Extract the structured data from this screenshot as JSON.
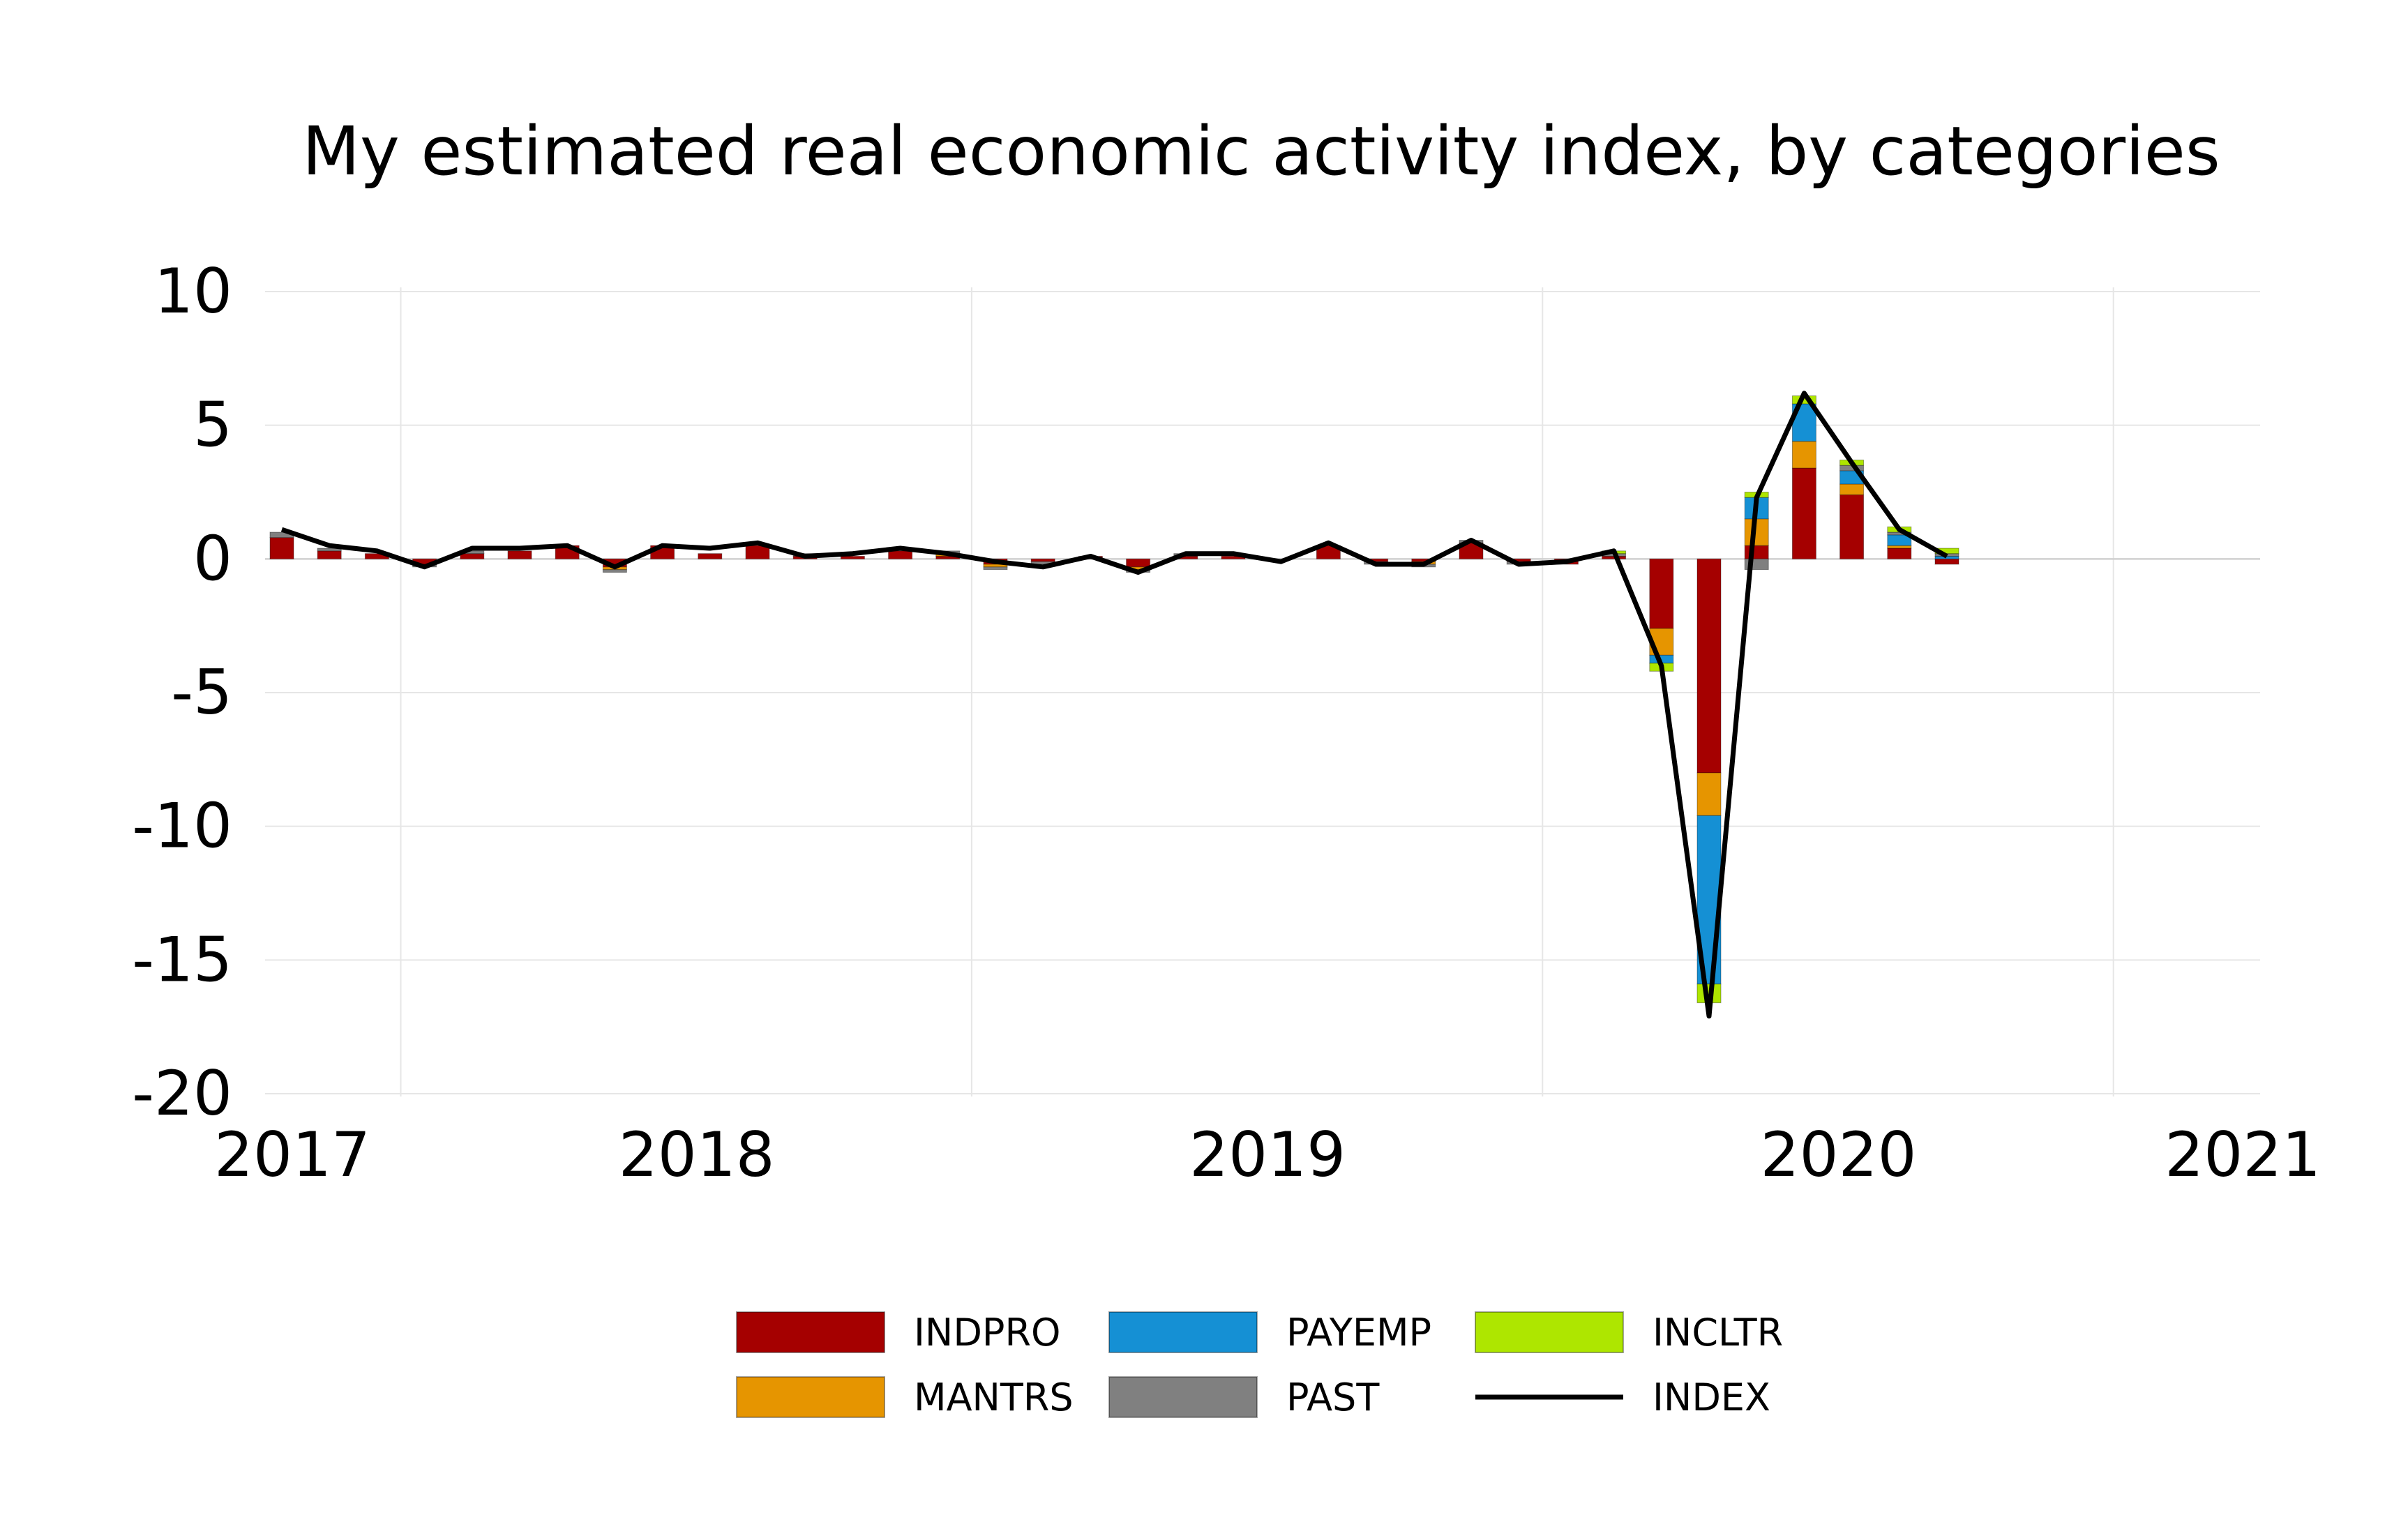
{
  "chart_data": {
    "type": "bar",
    "title": "My estimated real economic activity index, by categories",
    "xlabel": "",
    "ylabel": "",
    "ylim": [
      -20,
      10
    ],
    "yticks": [
      10,
      5,
      0,
      -5,
      -10,
      -15,
      -20
    ],
    "xticks": [
      {
        "label": "2017",
        "pos": 0
      },
      {
        "label": "2018",
        "pos": 8.5
      },
      {
        "label": "2019",
        "pos": 20.5
      },
      {
        "label": "2020",
        "pos": 32.5
      },
      {
        "label": "2021",
        "pos": 41
      }
    ],
    "vertical_grid_at": [
      2.5,
      14.5,
      26.5,
      38.5
    ],
    "grid": true,
    "legend_position": "bottom",
    "bar_stack_order": [
      "INDPRO",
      "MANTRS",
      "PAYEMP",
      "PAST",
      "INCLTR"
    ],
    "series": [
      {
        "name": "INDPRO",
        "color": "#a50000",
        "values": [
          0.8,
          0.3,
          0.2,
          -0.2,
          0.2,
          0.3,
          0.5,
          -0.3,
          0.5,
          0.2,
          0.5,
          0.1,
          0.1,
          0.3,
          0.1,
          -0.2,
          -0.1,
          0.1,
          -0.3,
          0.1,
          0.1,
          0.0,
          0.5,
          -0.1,
          -0.1,
          0.6,
          -0.1,
          -0.2,
          0.1,
          -2.6,
          -8.0,
          0.5,
          3.4,
          2.4,
          0.4,
          -0.2
        ]
      },
      {
        "name": "MANTRS",
        "color": "#e69500",
        "values": [
          0.0,
          0.0,
          0.0,
          0.0,
          0.0,
          0.0,
          0.0,
          -0.1,
          0.0,
          0.0,
          0.0,
          0.0,
          0.0,
          0.0,
          0.1,
          -0.1,
          0.0,
          0.0,
          -0.1,
          0.0,
          0.0,
          0.0,
          0.0,
          0.0,
          -0.1,
          0.0,
          0.0,
          0.0,
          0.0,
          -1.0,
          -1.6,
          1.0,
          1.0,
          0.4,
          0.1,
          0.0
        ]
      },
      {
        "name": "PAYEMP",
        "color": "#1590d4",
        "values": [
          0.0,
          0.0,
          0.0,
          0.0,
          0.0,
          0.0,
          0.0,
          0.0,
          0.0,
          0.0,
          0.0,
          0.0,
          0.0,
          0.0,
          0.0,
          0.0,
          0.0,
          0.0,
          0.0,
          0.0,
          0.0,
          0.0,
          0.0,
          0.0,
          0.0,
          0.0,
          0.0,
          0.0,
          0.0,
          -0.3,
          -6.3,
          0.8,
          1.4,
          0.5,
          0.4,
          0.1
        ]
      },
      {
        "name": "PAST",
        "color": "#808080",
        "values": [
          0.2,
          0.1,
          0.0,
          -0.1,
          0.1,
          0.0,
          0.0,
          -0.1,
          0.0,
          0.0,
          0.0,
          0.1,
          0.0,
          0.0,
          0.1,
          -0.1,
          -0.1,
          0.0,
          -0.1,
          0.1,
          0.0,
          0.0,
          0.0,
          -0.1,
          -0.1,
          0.1,
          -0.1,
          0.0,
          0.1,
          0.0,
          0.0,
          -0.4,
          0.0,
          0.2,
          0.1,
          0.1
        ]
      },
      {
        "name": "INCLTR",
        "color": "#aee600",
        "values": [
          0.0,
          0.0,
          0.0,
          0.0,
          0.0,
          0.0,
          0.0,
          0.0,
          0.0,
          0.0,
          0.0,
          0.0,
          0.0,
          0.0,
          0.0,
          0.0,
          0.0,
          0.0,
          0.0,
          0.0,
          0.0,
          0.0,
          0.0,
          0.0,
          0.0,
          0.0,
          0.0,
          0.0,
          0.1,
          -0.3,
          -0.7,
          0.2,
          0.3,
          0.2,
          0.2,
          0.2
        ]
      },
      {
        "name": "INDEX",
        "type": "line",
        "color": "#000000",
        "values": [
          1.1,
          0.5,
          0.3,
          -0.3,
          0.4,
          0.4,
          0.5,
          -0.3,
          0.5,
          0.4,
          0.6,
          0.1,
          0.2,
          0.4,
          0.2,
          -0.1,
          -0.3,
          0.1,
          -0.5,
          0.2,
          0.2,
          -0.1,
          0.6,
          -0.2,
          -0.2,
          0.7,
          -0.2,
          -0.1,
          0.3,
          -4.0,
          -17.1,
          2.3,
          6.2,
          3.6,
          1.1,
          0.1
        ]
      }
    ]
  }
}
